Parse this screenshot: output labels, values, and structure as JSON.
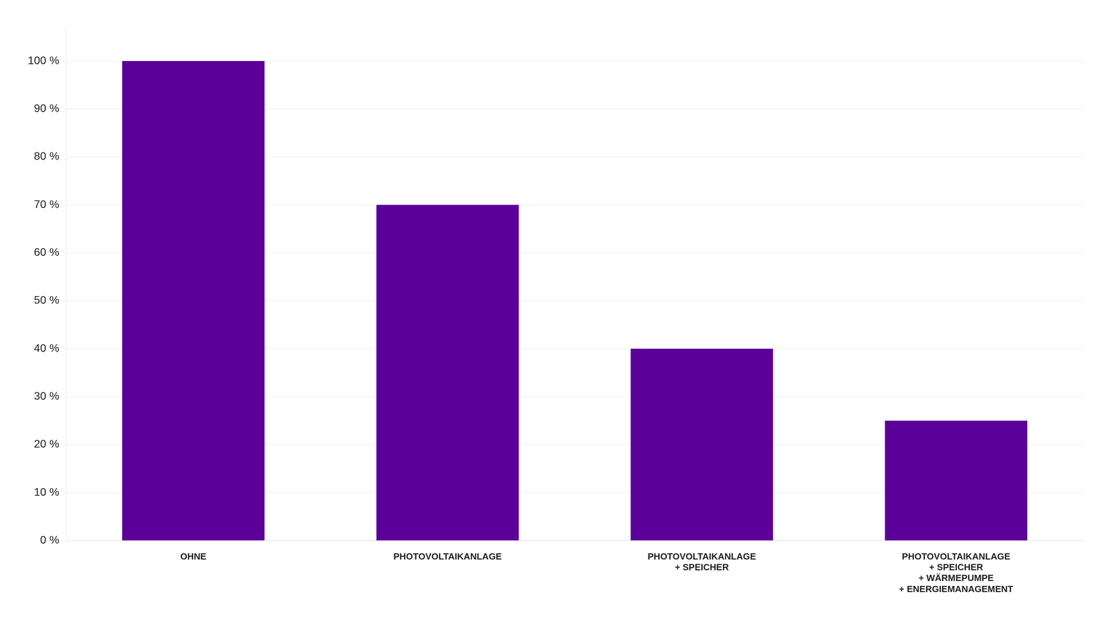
{
  "chart_data": {
    "type": "bar",
    "categories": [
      "OHNE",
      "PHOTOVOLTAIKANLAGE",
      "PHOTOVOLTAIKANLAGE\n+ SPEICHER",
      "PHOTOVOLTAIKANLAGE\n+ SPEICHER\n+ WÄRMEPUMPE\n+ ENERGIEMANAGEMENT"
    ],
    "values": [
      100,
      70,
      40,
      25
    ],
    "color": "#5B0099",
    "ylim": [
      0,
      107
    ],
    "yticks": [
      {
        "value": 0,
        "label": "0 %"
      },
      {
        "value": 10,
        "label": "10 %"
      },
      {
        "value": 20,
        "label": "20 %"
      },
      {
        "value": 30,
        "label": "30 %"
      },
      {
        "value": 40,
        "label": "40 %"
      },
      {
        "value": 50,
        "label": "50 %"
      },
      {
        "value": 60,
        "label": "60 %"
      },
      {
        "value": 70,
        "label": "70 %"
      },
      {
        "value": 80,
        "label": "80 %"
      },
      {
        "value": 90,
        "label": "90 %"
      },
      {
        "value": 100,
        "label": "100 %"
      }
    ],
    "grid": true
  }
}
